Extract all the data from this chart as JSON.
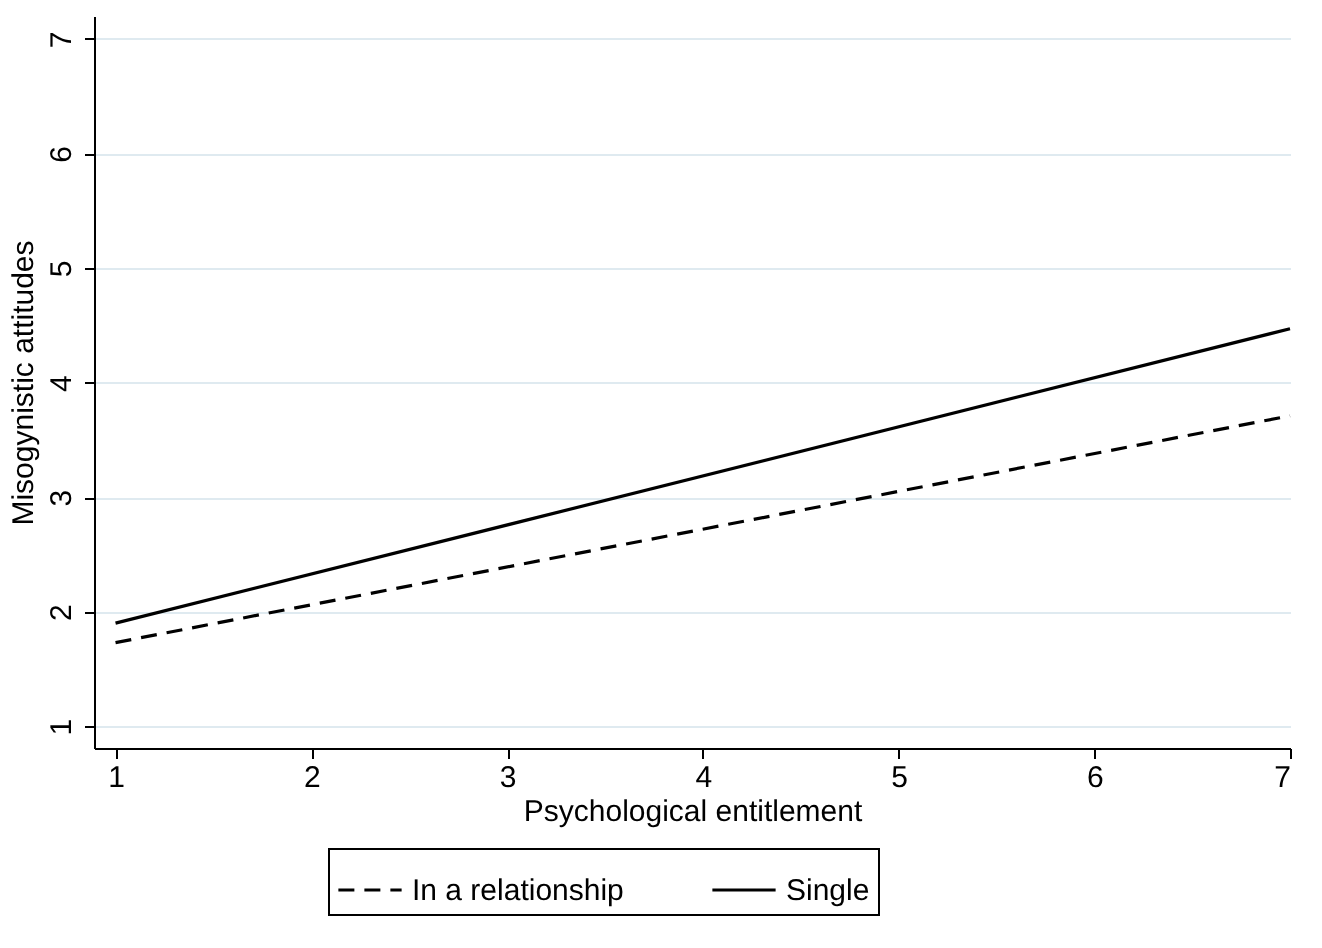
{
  "chart_data": {
    "type": "line",
    "xlabel": "Psychological entitlement",
    "ylabel": "Misogynistic attitudes",
    "xlim": [
      0.89,
      7
    ],
    "xticks": [
      1,
      2,
      3,
      4,
      5,
      6,
      7
    ],
    "ylim": [
      0.81,
      7.2
    ],
    "yticks": [
      1,
      2,
      3,
      4,
      5,
      6,
      7
    ],
    "grid": "y",
    "legend": "bottom",
    "marker": "none",
    "x": [
      1,
      7
    ],
    "series": [
      {
        "name": "In a relationship",
        "color": "#000000",
        "line_style": "dashed",
        "values": [
          1.73,
          3.71
        ]
      },
      {
        "name": "Single",
        "color": "#000000",
        "line_style": "solid",
        "values": [
          1.9,
          4.47
        ]
      }
    ]
  }
}
